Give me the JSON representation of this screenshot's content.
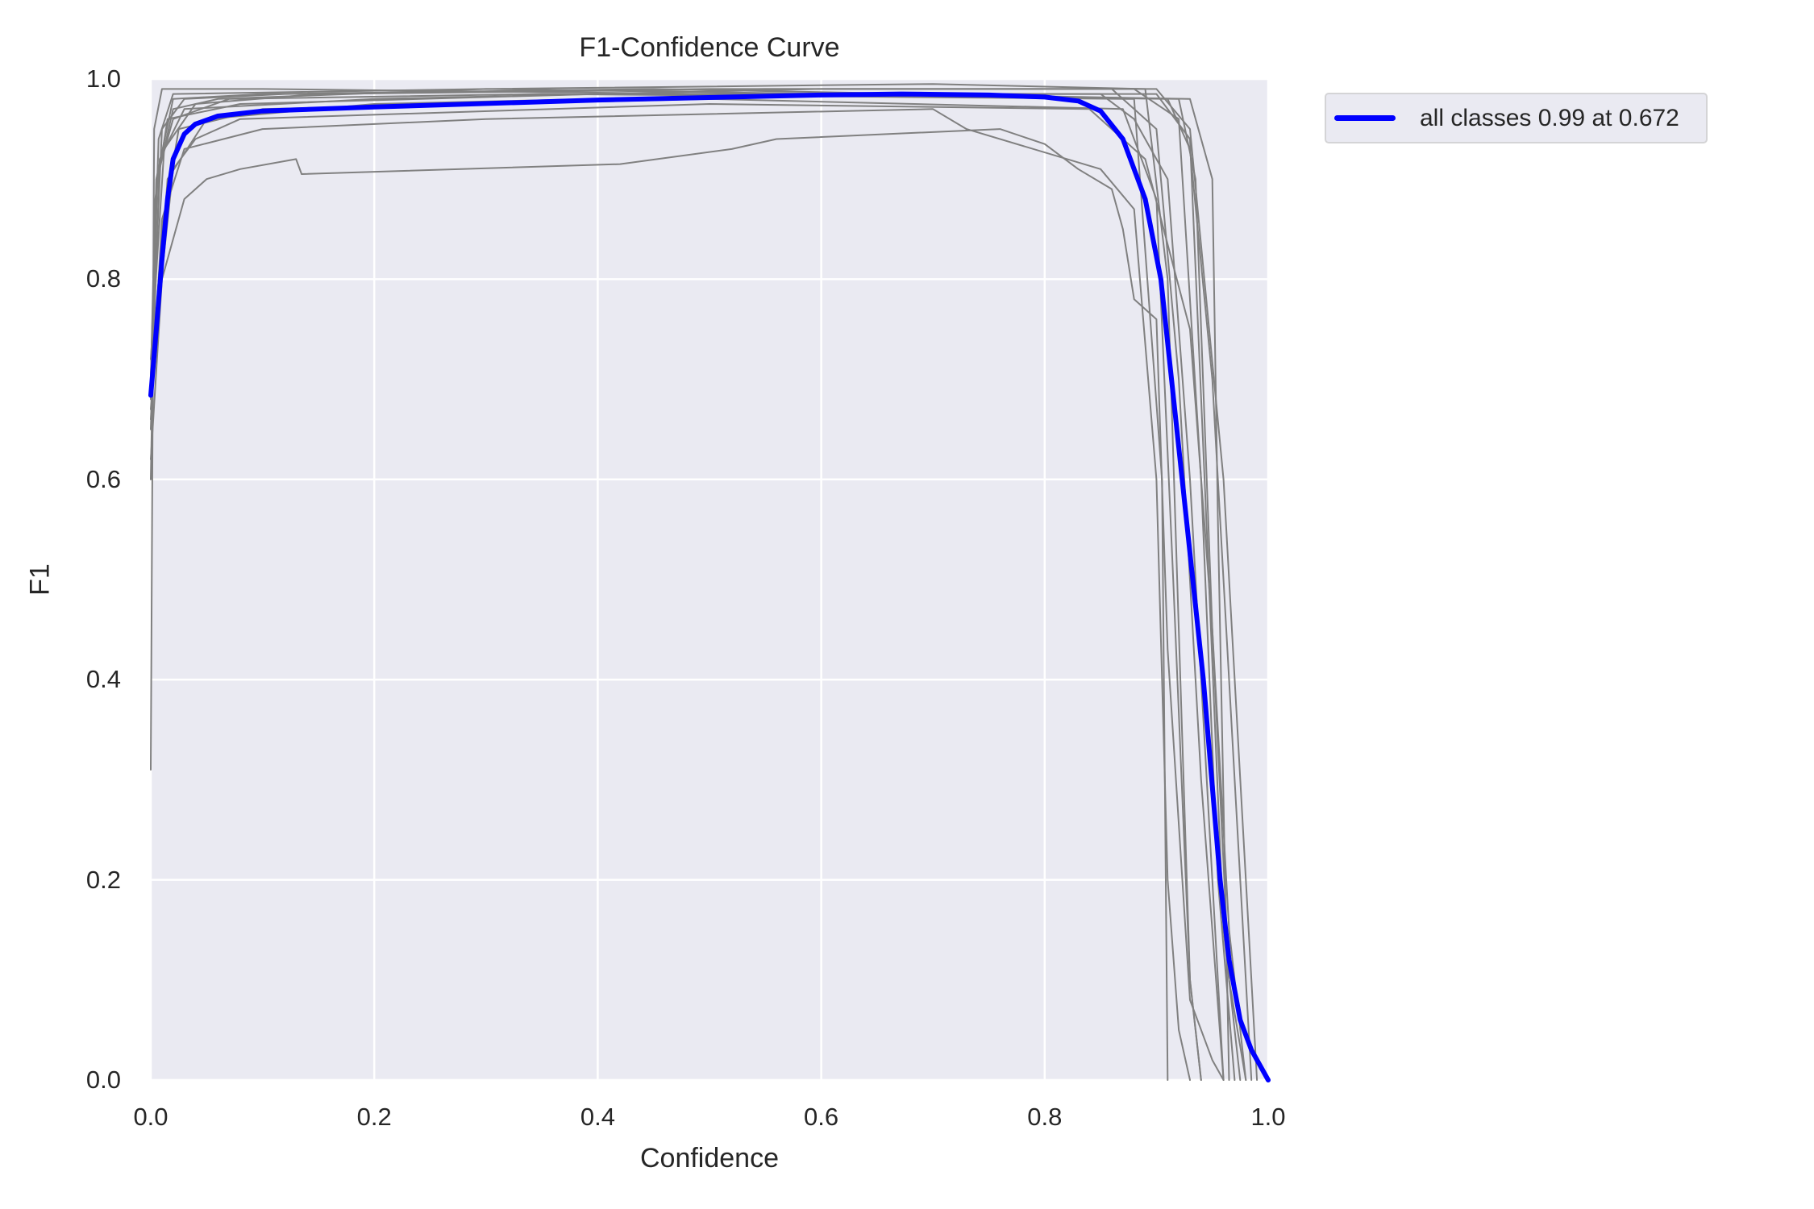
{
  "chart_data": {
    "type": "line",
    "title": "F1-Confidence Curve",
    "xlabel": "Confidence",
    "ylabel": "F1",
    "xlim": [
      0.0,
      1.0
    ],
    "ylim": [
      0.0,
      1.0
    ],
    "xticks": [
      "0.0",
      "0.2",
      "0.4",
      "0.6",
      "0.8",
      "1.0"
    ],
    "yticks": [
      "0.0",
      "0.2",
      "0.4",
      "0.6",
      "0.8",
      "1.0"
    ],
    "grid": true,
    "legend_position": "outside upper right",
    "background_color": "#eaeaf2",
    "series": [
      {
        "name": "all classes 0.99 at 0.672",
        "color": "#0000ff",
        "linewidth": 6,
        "x": [
          0.0,
          0.005,
          0.01,
          0.015,
          0.02,
          0.03,
          0.04,
          0.06,
          0.1,
          0.2,
          0.4,
          0.6,
          0.672,
          0.75,
          0.8,
          0.83,
          0.85,
          0.87,
          0.89,
          0.904,
          0.923,
          0.942,
          0.957,
          0.965,
          0.975,
          0.985,
          1.0
        ],
        "y": [
          0.684,
          0.75,
          0.82,
          0.88,
          0.92,
          0.945,
          0.955,
          0.963,
          0.968,
          0.972,
          0.979,
          0.984,
          0.985,
          0.984,
          0.982,
          0.978,
          0.968,
          0.94,
          0.88,
          0.8,
          0.6,
          0.4,
          0.2,
          0.12,
          0.06,
          0.03,
          0.0
        ]
      }
    ],
    "per_class_series_color": "#808080",
    "per_class_series": [
      {
        "x": [
          0.0,
          0.003,
          0.01,
          0.1,
          0.5,
          0.85,
          0.88,
          0.91,
          0.93,
          0.95,
          0.96
        ],
        "y": [
          0.31,
          0.95,
          0.99,
          0.99,
          0.985,
          0.985,
          0.96,
          0.9,
          0.6,
          0.2,
          0.0
        ]
      },
      {
        "x": [
          0.0,
          0.005,
          0.02,
          0.1,
          0.5,
          0.86,
          0.9,
          0.92,
          0.94,
          0.96
        ],
        "y": [
          0.6,
          0.9,
          0.98,
          0.985,
          0.99,
          0.99,
          0.95,
          0.7,
          0.3,
          0.0
        ]
      },
      {
        "x": [
          0.0,
          0.008,
          0.03,
          0.2,
          0.6,
          0.88,
          0.92,
          0.94,
          0.955,
          0.97
        ],
        "y": [
          0.65,
          0.92,
          0.97,
          0.98,
          0.99,
          0.99,
          0.96,
          0.6,
          0.2,
          0.0
        ]
      },
      {
        "x": [
          0.0,
          0.004,
          0.015,
          0.08,
          0.4,
          0.9,
          0.93,
          0.945,
          0.96,
          0.975
        ],
        "y": [
          0.7,
          0.88,
          0.96,
          0.975,
          0.985,
          0.985,
          0.94,
          0.55,
          0.15,
          0.0
        ]
      },
      {
        "x": [
          0.0,
          0.01,
          0.025,
          0.1,
          0.5,
          0.87,
          0.9,
          0.915,
          0.93,
          0.94
        ],
        "y": [
          0.68,
          0.85,
          0.95,
          0.97,
          0.98,
          0.97,
          0.88,
          0.5,
          0.1,
          0.0
        ]
      },
      {
        "x": [
          0.0,
          0.006,
          0.02,
          0.06,
          0.3,
          0.92,
          0.935,
          0.95,
          0.965,
          0.98
        ],
        "y": [
          0.7,
          0.9,
          0.97,
          0.98,
          0.99,
          0.98,
          0.9,
          0.45,
          0.1,
          0.0
        ]
      },
      {
        "x": [
          0.0,
          0.01,
          0.03,
          0.05,
          0.08,
          0.13,
          0.135,
          0.42,
          0.52,
          0.56,
          0.76,
          0.8,
          0.83,
          0.86,
          0.87,
          0.88,
          0.9,
          0.91,
          0.93,
          0.95,
          0.96
        ],
        "y": [
          0.62,
          0.8,
          0.88,
          0.9,
          0.91,
          0.92,
          0.905,
          0.915,
          0.93,
          0.94,
          0.95,
          0.935,
          0.91,
          0.89,
          0.85,
          0.78,
          0.76,
          0.43,
          0.08,
          0.02,
          0.0
        ]
      },
      {
        "x": [
          0.0,
          0.01,
          0.03,
          0.1,
          0.3,
          0.7,
          0.73,
          0.85,
          0.88,
          0.9,
          0.91,
          0.92,
          0.93
        ],
        "y": [
          0.66,
          0.86,
          0.93,
          0.95,
          0.96,
          0.97,
          0.95,
          0.91,
          0.87,
          0.6,
          0.2,
          0.05,
          0.0
        ]
      },
      {
        "x": [
          0.0,
          0.02,
          0.04,
          0.08,
          0.5,
          0.84,
          0.89,
          0.93,
          0.95,
          0.965,
          0.98
        ],
        "y": [
          0.7,
          0.91,
          0.94,
          0.96,
          0.975,
          0.97,
          0.92,
          0.75,
          0.45,
          0.15,
          0.0
        ]
      },
      {
        "x": [
          0.0,
          0.012,
          0.04,
          0.15,
          0.55,
          0.9,
          0.93,
          0.96,
          0.98,
          0.99
        ],
        "y": [
          0.72,
          0.93,
          0.975,
          0.985,
          0.99,
          0.99,
          0.95,
          0.6,
          0.2,
          0.0
        ]
      },
      {
        "x": [
          0.0,
          0.007,
          0.02,
          0.3,
          0.7,
          0.89,
          0.91,
          0.92,
          0.93,
          0.94
        ],
        "y": [
          0.69,
          0.94,
          0.985,
          0.99,
          0.995,
          0.99,
          0.8,
          0.45,
          0.1,
          0.0
        ]
      },
      {
        "x": [
          0.0,
          0.015,
          0.05,
          0.2,
          0.6,
          0.91,
          0.93,
          0.95,
          0.97,
          0.985
        ],
        "y": [
          0.67,
          0.9,
          0.96,
          0.975,
          0.985,
          0.98,
          0.93,
          0.7,
          0.3,
          0.0
        ]
      },
      {
        "x": [
          0.0,
          0.01,
          0.03,
          0.12,
          0.45,
          0.93,
          0.95,
          0.955,
          0.965
        ],
        "y": [
          0.7,
          0.95,
          0.98,
          0.985,
          0.99,
          0.98,
          0.9,
          0.56,
          0.0
        ]
      },
      {
        "x": [
          0.0,
          0.005,
          0.02,
          0.07,
          0.35,
          0.88,
          0.905,
          0.91
        ],
        "y": [
          0.7,
          0.9,
          0.96,
          0.98,
          0.985,
          0.98,
          0.6,
          0.0
        ]
      }
    ]
  }
}
